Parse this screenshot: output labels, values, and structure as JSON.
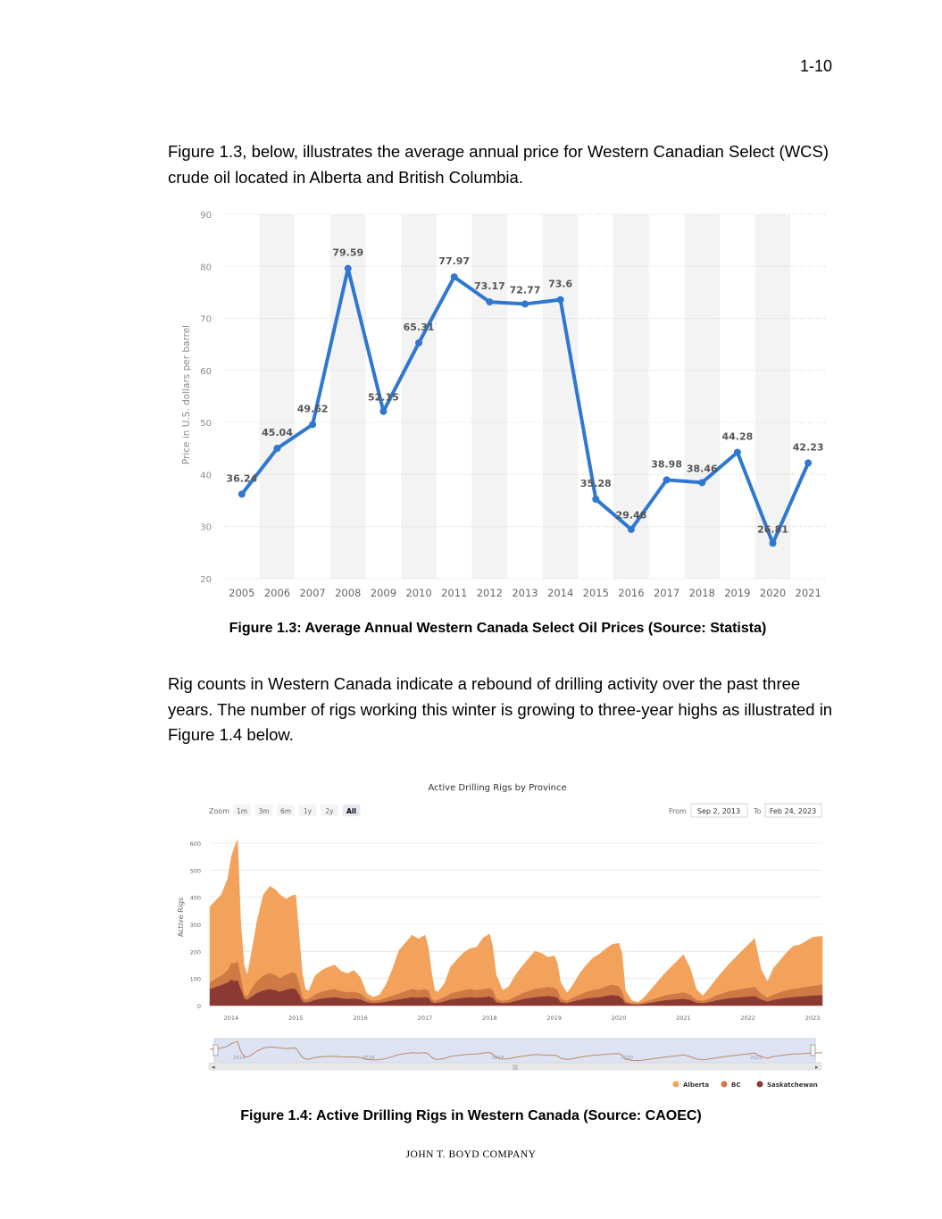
{
  "page": {
    "page_number": "1-10",
    "paragraph1": "Figure 1.3, below, illustrates the average annual price for Western Canadian Select (WCS) crude oil located in Alberta and British Columbia.",
    "caption1": "Figure 1.3: Average Annual Western Canada Select Oil Prices (Source: Statista)",
    "paragraph2": "Rig counts in Western Canada indicate a rebound of drilling activity over the past three years. The number of rigs working this winter is growing to three-year highs as illustrated in Figure 1.4 below.",
    "caption2": "Figure 1.4: Active Drilling Rigs in Western Canada (Source: CAOEC)",
    "footer": "JOHN  T. BOYD  COMPANY"
  },
  "chart_data": [
    {
      "type": "line",
      "title": "",
      "xlabel": "",
      "ylabel": "Price in U.S. dollars per barrel",
      "ylim": [
        20,
        90
      ],
      "yticks": [
        20,
        30,
        40,
        50,
        60,
        70,
        80,
        90
      ],
      "color": "#2f77d0",
      "categories": [
        "2005",
        "2006",
        "2007",
        "2008",
        "2009",
        "2010",
        "2011",
        "2012",
        "2013",
        "2014",
        "2015",
        "2016",
        "2017",
        "2018",
        "2019",
        "2020",
        "2021"
      ],
      "values": [
        36.24,
        45.04,
        49.62,
        79.59,
        52.15,
        65.31,
        77.97,
        73.17,
        72.77,
        73.6,
        35.28,
        29.48,
        38.98,
        38.46,
        44.28,
        26.81,
        42.23
      ],
      "labels": [
        "36.24",
        "45.04",
        "49.62",
        "79.59",
        "52.15",
        "65.31",
        "77.97",
        "73.17",
        "72.77",
        "73.6",
        "35.28",
        "29.48",
        "38.98",
        "38.46",
        "44.28",
        "26.81",
        "42.23"
      ]
    },
    {
      "type": "area",
      "title": "Active Drilling Rigs by Province",
      "xlabel": "",
      "ylabel": "Active Rigs",
      "ylim": [
        0,
        600
      ],
      "yticks": [
        0,
        100,
        200,
        300,
        400,
        500,
        600
      ],
      "x_ticks": [
        "2014",
        "2015",
        "2016",
        "2017",
        "2018",
        "2019",
        "2020",
        "2021",
        "2022",
        "2023"
      ],
      "zoom_label": "Zoom",
      "zoom_buttons": [
        "1m",
        "3m",
        "6m",
        "1y",
        "2y",
        "All"
      ],
      "from_label": "From",
      "from_date": "Sep 2, 2013",
      "to_label": "To",
      "to_date": "Feb 24, 2023",
      "navigator_ticks": [
        "2014",
        "2016",
        "2018",
        "2020",
        "2022"
      ],
      "x_years": [
        2013.67,
        2013.85,
        2013.95,
        2014.0,
        2014.05,
        2014.1,
        2014.15,
        2014.2,
        2014.25,
        2014.3,
        2014.4,
        2014.5,
        2014.6,
        2014.7,
        2014.75,
        2014.85,
        2014.95,
        2015.0,
        2015.05,
        2015.1,
        2015.15,
        2015.2,
        2015.3,
        2015.4,
        2015.5,
        2015.6,
        2015.7,
        2015.8,
        2015.9,
        2016.0,
        2016.1,
        2016.2,
        2016.3,
        2016.4,
        2016.5,
        2016.6,
        2016.7,
        2016.8,
        2016.9,
        2017.0,
        2017.05,
        2017.1,
        2017.15,
        2017.2,
        2017.3,
        2017.4,
        2017.5,
        2017.6,
        2017.7,
        2017.8,
        2017.9,
        2018.0,
        2018.05,
        2018.1,
        2018.2,
        2018.3,
        2018.4,
        2018.5,
        2018.6,
        2018.7,
        2018.8,
        2018.9,
        2019.0,
        2019.05,
        2019.1,
        2019.2,
        2019.3,
        2019.4,
        2019.5,
        2019.6,
        2019.7,
        2019.8,
        2019.9,
        2020.0,
        2020.05,
        2020.1,
        2020.2,
        2020.3,
        2020.4,
        2020.5,
        2020.6,
        2020.7,
        2020.8,
        2020.9,
        2021.0,
        2021.1,
        2021.2,
        2021.3,
        2021.4,
        2021.5,
        2021.6,
        2021.7,
        2021.8,
        2021.9,
        2022.0,
        2022.1,
        2022.2,
        2022.3,
        2022.4,
        2022.5,
        2022.6,
        2022.7,
        2022.8,
        2022.9,
        2023.0,
        2023.15
      ],
      "legend": [
        "Alberta",
        "BC",
        "Saskatchewan"
      ],
      "series": [
        {
          "name": "Saskatchewan",
          "color": "#8b3a33",
          "values": [
            60,
            75,
            85,
            95,
            90,
            92,
            60,
            25,
            20,
            30,
            45,
            55,
            60,
            55,
            50,
            58,
            62,
            60,
            40,
            15,
            10,
            12,
            20,
            25,
            28,
            30,
            26,
            24,
            25,
            22,
            12,
            8,
            10,
            14,
            18,
            22,
            26,
            30,
            28,
            30,
            28,
            12,
            8,
            10,
            15,
            22,
            25,
            28,
            30,
            28,
            30,
            32,
            28,
            12,
            8,
            10,
            16,
            22,
            26,
            30,
            32,
            34,
            32,
            28,
            12,
            8,
            15,
            20,
            25,
            28,
            30,
            35,
            38,
            35,
            25,
            8,
            4,
            3,
            6,
            10,
            14,
            18,
            20,
            22,
            24,
            20,
            10,
            8,
            12,
            18,
            22,
            26,
            28,
            30,
            32,
            34,
            22,
            14,
            20,
            24,
            28,
            30,
            32,
            34,
            36,
            38
          ]
        },
        {
          "name": "BC",
          "color": "#cf7a45",
          "values": [
            25,
            35,
            45,
            60,
            65,
            70,
            40,
            15,
            12,
            25,
            45,
            55,
            60,
            55,
            50,
            55,
            60,
            58,
            40,
            15,
            10,
            12,
            20,
            25,
            28,
            30,
            26,
            24,
            25,
            22,
            12,
            8,
            10,
            14,
            18,
            22,
            26,
            30,
            28,
            30,
            28,
            12,
            8,
            10,
            15,
            22,
            25,
            28,
            30,
            28,
            30,
            32,
            28,
            12,
            8,
            10,
            16,
            22,
            26,
            30,
            32,
            34,
            32,
            28,
            12,
            8,
            15,
            20,
            25,
            28,
            30,
            35,
            38,
            35,
            25,
            8,
            4,
            3,
            6,
            10,
            14,
            18,
            20,
            22,
            24,
            20,
            10,
            8,
            12,
            18,
            22,
            26,
            28,
            30,
            32,
            34,
            22,
            14,
            20,
            24,
            28,
            30,
            32,
            34,
            36,
            38
          ]
        },
        {
          "name": "Alberta",
          "color": "#f2a25a",
          "values": [
            280,
            300,
            340,
            390,
            430,
            450,
            200,
            110,
            80,
            120,
            220,
            300,
            320,
            315,
            310,
            280,
            285,
            290,
            180,
            90,
            40,
            30,
            70,
            80,
            85,
            90,
            75,
            70,
            80,
            60,
            20,
            15,
            20,
            50,
            100,
            160,
            180,
            200,
            190,
            200,
            160,
            100,
            40,
            30,
            50,
            100,
            120,
            140,
            150,
            160,
            190,
            200,
            160,
            90,
            40,
            50,
            80,
            100,
            120,
            140,
            130,
            110,
            120,
            100,
            60,
            30,
            50,
            80,
            100,
            120,
            130,
            140,
            150,
            160,
            140,
            40,
            10,
            6,
            20,
            40,
            60,
            80,
            100,
            120,
            140,
            100,
            40,
            20,
            40,
            60,
            80,
            100,
            120,
            140,
            160,
            180,
            90,
            60,
            100,
            120,
            140,
            160,
            160,
            170,
            180,
            180
          ]
        }
      ]
    }
  ]
}
